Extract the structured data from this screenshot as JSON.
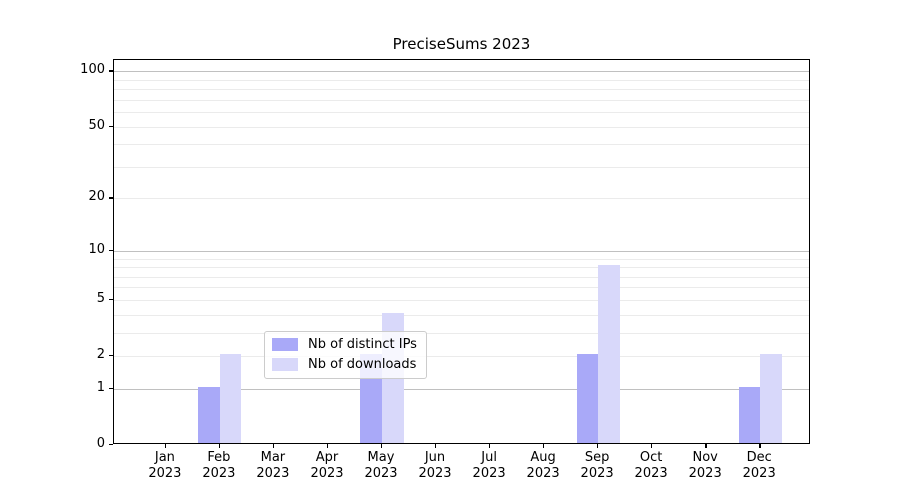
{
  "chart_data": {
    "type": "bar",
    "title": "PreciseSums 2023",
    "categories": [
      "Jan",
      "Feb",
      "Mar",
      "Apr",
      "May",
      "Jun",
      "Jul",
      "Aug",
      "Sep",
      "Oct",
      "Nov",
      "Dec"
    ],
    "category_year": "2023",
    "series": [
      {
        "name": "Nb of distinct IPs",
        "color": "#a9a9f8",
        "values": [
          0,
          1,
          0,
          0,
          2,
          0,
          0,
          0,
          2,
          0,
          0,
          1
        ]
      },
      {
        "name": "Nb of downloads",
        "color": "#d8d8fa",
        "values": [
          0,
          2,
          0,
          0,
          4,
          0,
          0,
          0,
          8,
          0,
          0,
          2
        ]
      }
    ],
    "yscale": "log1p",
    "y_ticks": [
      0,
      1,
      2,
      5,
      10,
      20,
      50,
      100
    ],
    "grid_major_values": [
      1,
      10,
      100
    ],
    "grid_minor_values": [
      2,
      3,
      4,
      5,
      6,
      7,
      8,
      9,
      20,
      30,
      40,
      50,
      60,
      70,
      80,
      90
    ],
    "ylim": [
      0,
      115
    ],
    "xlim": [
      -0.96,
      11.94
    ],
    "bar_width": 0.4,
    "legend_position": "lower center",
    "grid": "on",
    "xlabel": "",
    "ylabel": ""
  }
}
